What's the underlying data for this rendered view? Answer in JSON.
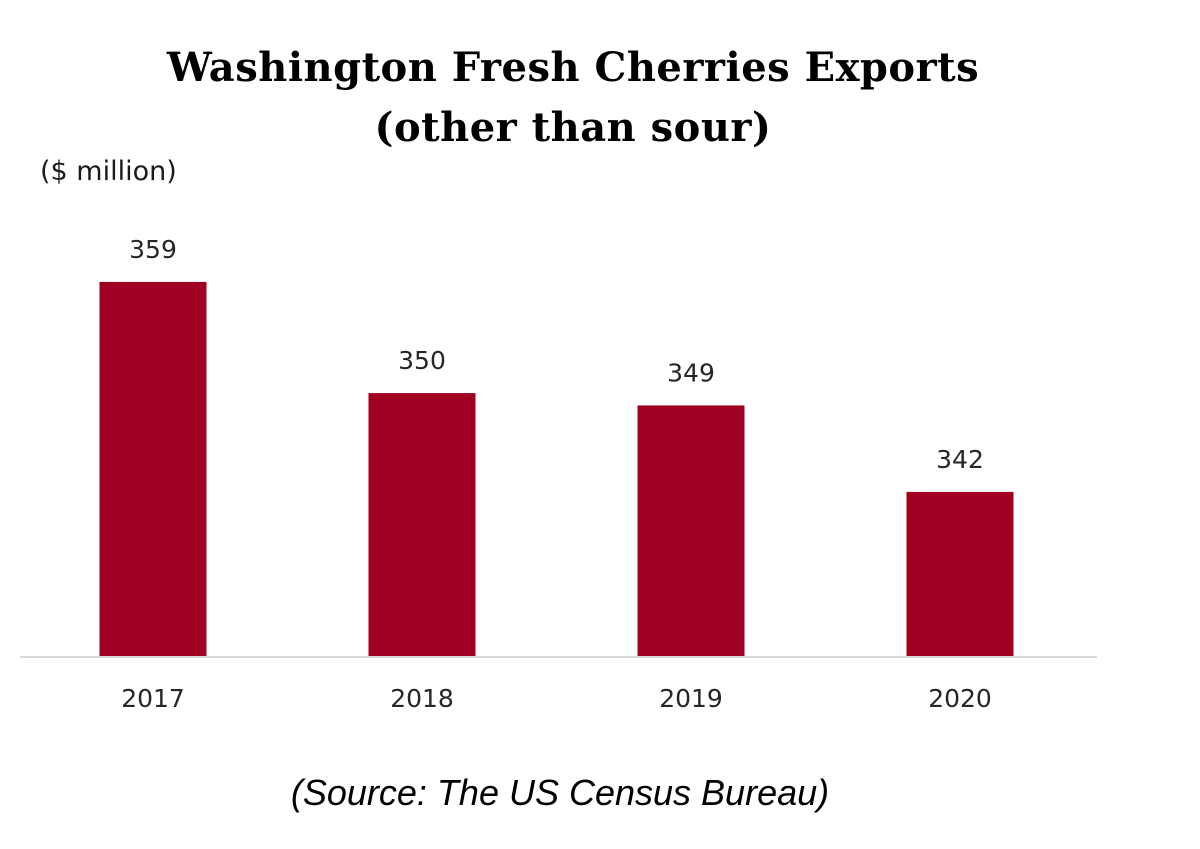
{
  "chart_data": {
    "type": "bar",
    "title_lines": [
      "Washington Fresh Cherries Exports",
      "(other than sour)"
    ],
    "ylabel": "($ million)",
    "xlabel": "",
    "categories": [
      "2017",
      "2018",
      "2019",
      "2020"
    ],
    "values": [
      359,
      350,
      349,
      342
    ],
    "data_labels": [
      "359",
      "350",
      "349",
      "342"
    ],
    "bar_color": "#a00021",
    "axis_color": "#d9d9d9",
    "grid": false,
    "legend": "none"
  },
  "source_note": "(Source: The US Census Bureau)"
}
